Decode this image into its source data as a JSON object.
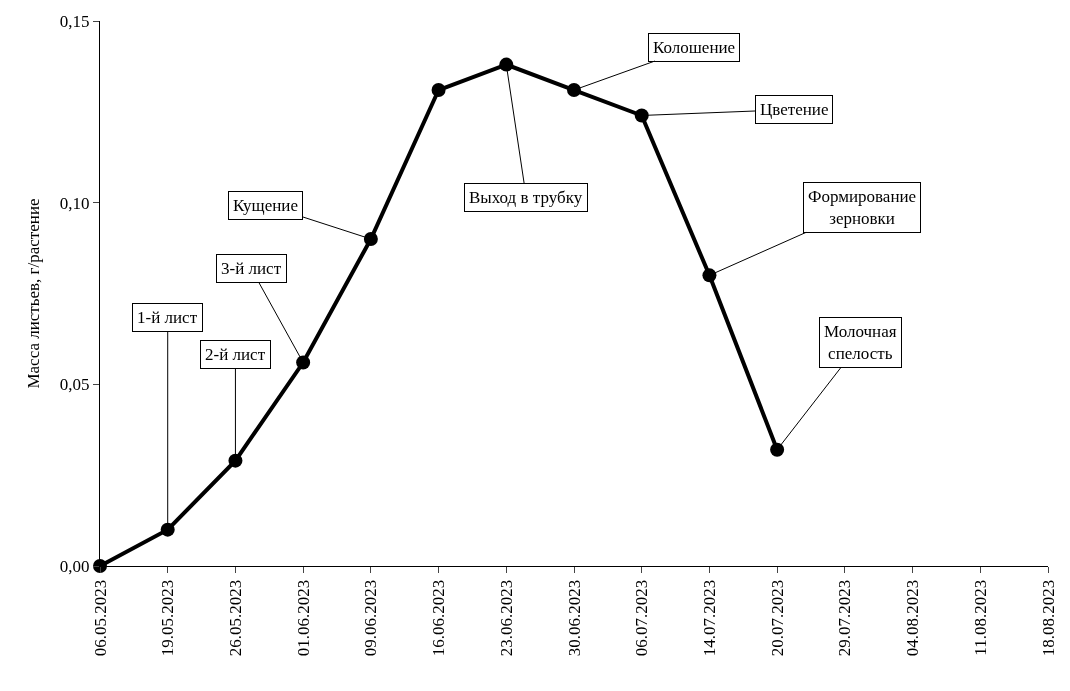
{
  "chart_data": {
    "type": "line",
    "ylabel": "Масса листьев, г/растение",
    "categories": [
      "06.05.2023",
      "19.05.2023",
      "26.05.2023",
      "01.06.2023",
      "09.06.2023",
      "16.06.2023",
      "23.06.2023",
      "30.06.2023",
      "06.07.2023",
      "14.07.2023",
      "20.07.2023",
      "29.07.2023",
      "04.08.2023",
      "11.08.2023",
      "18.08.2023"
    ],
    "series": [
      {
        "color": "#000000",
        "values": [
          0,
          0.01,
          0.029,
          0.056,
          0.09,
          0.131,
          0.138,
          0.131,
          0.124,
          0.08,
          0.032,
          null,
          null,
          null,
          null
        ]
      }
    ],
    "ylim": [
      0,
      0.15
    ],
    "yticks": [
      {
        "value": 0,
        "label": "0,00"
      },
      {
        "value": 0.05,
        "label": "0,05"
      },
      {
        "value": 0.1,
        "label": "0,10"
      },
      {
        "value": 0.15,
        "label": "0,15"
      }
    ],
    "marker": "circle",
    "line_style": "solid",
    "annotations": [
      {
        "text": "1-й лист",
        "x": "19.05.2023",
        "y": 0.01
      },
      {
        "text": "2-й лист",
        "x": "26.05.2023",
        "y": 0.029
      },
      {
        "text": "3-й лист",
        "x": "01.06.2023",
        "y": 0.056
      },
      {
        "text": "Кущение",
        "x": "09.06.2023",
        "y": 0.09
      },
      {
        "text": "Выход в трубку",
        "x": "23.06.2023",
        "y": 0.138
      },
      {
        "text": "Колошение",
        "x": "30.06.2023",
        "y": 0.131
      },
      {
        "text": "Цветение",
        "x": "06.07.2023",
        "y": 0.124
      },
      {
        "text": "Формирование\nзерновки",
        "x": "14.07.2023",
        "y": 0.08
      },
      {
        "text": "Молочная\nспелость",
        "x": "20.07.2023",
        "y": 0.032
      }
    ]
  }
}
